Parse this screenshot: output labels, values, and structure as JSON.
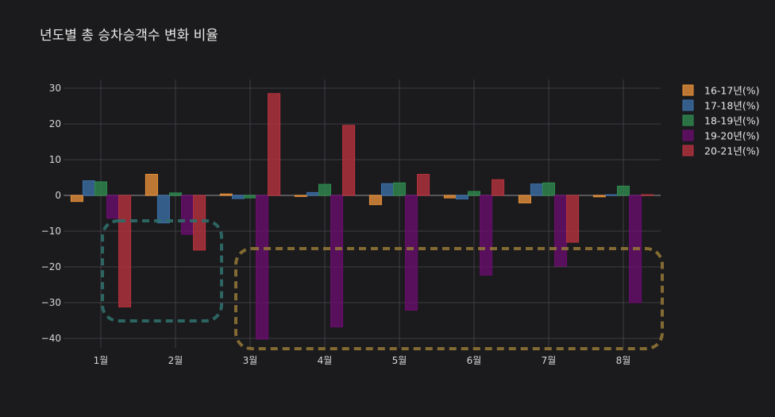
{
  "chart_data": {
    "type": "bar",
    "title": "년도별 총 승차승객수 변화 비율",
    "xlabel": "",
    "ylabel": "",
    "categories": [
      "1월",
      "2월",
      "3월",
      "4월",
      "5월",
      "6월",
      "7월",
      "8월"
    ],
    "ylim": [
      -43,
      33
    ],
    "yticks": [
      30,
      20,
      10,
      0,
      -10,
      -20,
      -30,
      -40
    ],
    "grid": true,
    "legend_position": "right",
    "series": [
      {
        "name": "16-17년(%)",
        "color": "#e8913a",
        "values": [
          -1.7,
          5.9,
          0.4,
          -0.3,
          -2.6,
          -0.7,
          -2.1,
          -0.4
        ]
      },
      {
        "name": "17-18년(%)",
        "color": "#3b6fa8",
        "values": [
          4.1,
          -7.7,
          -0.9,
          0.8,
          3.3,
          -1.0,
          3.2,
          0.2
        ]
      },
      {
        "name": "18-19년(%)",
        "color": "#2f8a4f",
        "values": [
          3.8,
          0.7,
          -0.7,
          3.1,
          3.5,
          1.1,
          3.5,
          2.6
        ]
      },
      {
        "name": "19-20년(%)",
        "color": "#6a0d6e",
        "values": [
          -6.4,
          -10.9,
          -40.2,
          -36.8,
          -32.1,
          -22.3,
          -19.8,
          -30.0
        ]
      },
      {
        "name": "20-21년(%)",
        "color": "#b8323f",
        "values": [
          -31.2,
          -15.3,
          28.5,
          19.6,
          5.9,
          4.4,
          -13.1,
          0.2
        ]
      }
    ],
    "annotations": [
      {
        "name": "teal-dashed-box",
        "color": "#2f6e6a"
      },
      {
        "name": "gold-dashed-box",
        "color": "#8f7336"
      }
    ]
  }
}
